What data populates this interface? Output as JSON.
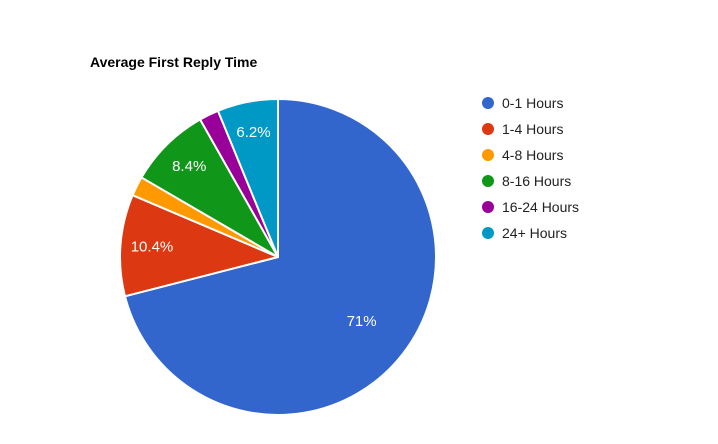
{
  "chart_data": {
    "type": "pie",
    "title": "Average First Reply Time",
    "legend_position": "right",
    "label_format": "percent",
    "slice_label_color": "#ffffff",
    "title_color": "#000000",
    "legend_text_color": "#222222",
    "background_color": "#ffffff",
    "slices": [
      {
        "label": "0-1 Hours",
        "value_pct": 71,
        "display_label": "71%",
        "color": "#3366CC"
      },
      {
        "label": "1-4 Hours",
        "value_pct": 10.4,
        "display_label": "10.4%",
        "color": "#DC3912"
      },
      {
        "label": "4-8 Hours",
        "value_pct": 2.0,
        "display_label": "",
        "color": "#FF9900"
      },
      {
        "label": "8-16 Hours",
        "value_pct": 8.4,
        "display_label": "8.4%",
        "color": "#109618"
      },
      {
        "label": "16-24 Hours",
        "value_pct": 2.0,
        "display_label": "",
        "color": "#990099"
      },
      {
        "label": "24+ Hours",
        "value_pct": 6.2,
        "display_label": "6.2%",
        "color": "#0099C6"
      }
    ]
  }
}
